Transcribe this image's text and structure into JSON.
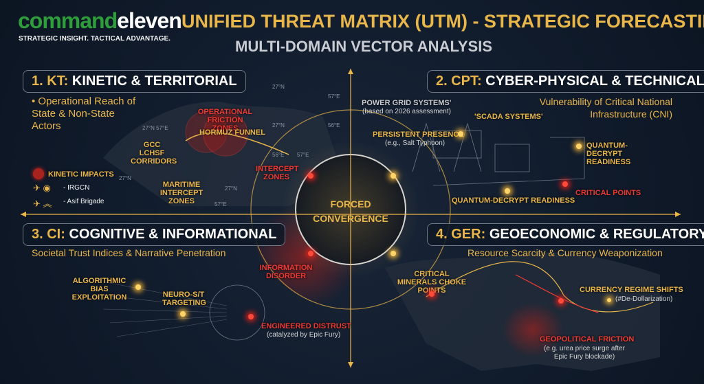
{
  "header": {
    "logo_part1": "command",
    "logo_part2": "eleven",
    "tagline": "STRATEGIC INSIGHT. TACTICAL ADVANTAGE.",
    "title": "UNIFIED THREAT MATRIX (UTM) - STRATEGIC FORECASTING",
    "subtitle": "MULTI-DOMAIN VECTOR ANALYSIS"
  },
  "center": {
    "line1": "FORCED",
    "line2": "CONVERGENCE"
  },
  "colors": {
    "gold": "#e9b64a",
    "red": "#ef3a34",
    "green": "#2e9e3a",
    "background": "#0f1a2b"
  },
  "kt": {
    "num": "1. KT:",
    "title": "KINETIC & TERRITORIAL",
    "bullet": "Operational Reach of State & Non-State Actors",
    "labels": {
      "friction": "OPERATIONAL FRICTION ZONES",
      "hormuz": "HORMUZ FUNNEL",
      "gcc": "GCC LCHSF CORRIDORS",
      "intercept": "INTERCEPT ZONES",
      "maritime": "MARITIME INTERCEPT ZONES"
    },
    "legend": {
      "kinetic": "KINETIC IMPACTS",
      "irgcn": "- IRGCN",
      "asif": "- Asif Brigade"
    },
    "coords": [
      "27°N",
      "57°E",
      "27°N",
      "56°E",
      "27°N 57°E",
      "56°E",
      "57°E",
      "27°N",
      "27°N",
      "57°E"
    ]
  },
  "cpt": {
    "num": "2. CPT:",
    "title": "CYBER-PHYSICAL & TECHNICAL",
    "subtitle": "Vulnerability of Critical National Infrastructure (CNI)",
    "power_grid": "POWER GRID SYSTEMS'",
    "power_grid_note": "(based on 2026 assessment)",
    "scada": "'SCADA SYSTEMS'",
    "persistent": "PERSISTENT PRESENCE",
    "persistent_note": "(e.g., Salt Typhoon)",
    "quantum1": "QUANTUM-DECRYPT READINESS",
    "quantum2": "QUANTUM-DECRYPT READINESS",
    "critical": "CRITICAL POINTS"
  },
  "ci": {
    "num": "3. CI:",
    "title": "COGNITIVE & INFORMATIONAL",
    "subtitle": "Societal Trust Indices & Narrative Penetration",
    "algo": "ALGORITHMIC BIAS EXPLOITATION",
    "neuro": "NEURO-S/T TARGETING",
    "disorder": "INFORMATION DISORDER",
    "distrust": "ENGINEERED DISTRUST",
    "distrust_note": "(catalyzed by Epic Fury)"
  },
  "ger": {
    "num": "4. GER:",
    "title": "GEOECONOMIC & REGULATORY",
    "subtitle": "Resource Scarcity & Currency Weaponization",
    "minerals": "CRITICAL MINERALS CHOKE POINTS",
    "currency": "CURRENCY REGIME SHIFTS",
    "currency_note": "(#De-Dollarization)",
    "friction": "GEOPOLITICAL FRICTION",
    "friction_note": "(e.g. urea price surge after Epic Fury blockade)"
  }
}
